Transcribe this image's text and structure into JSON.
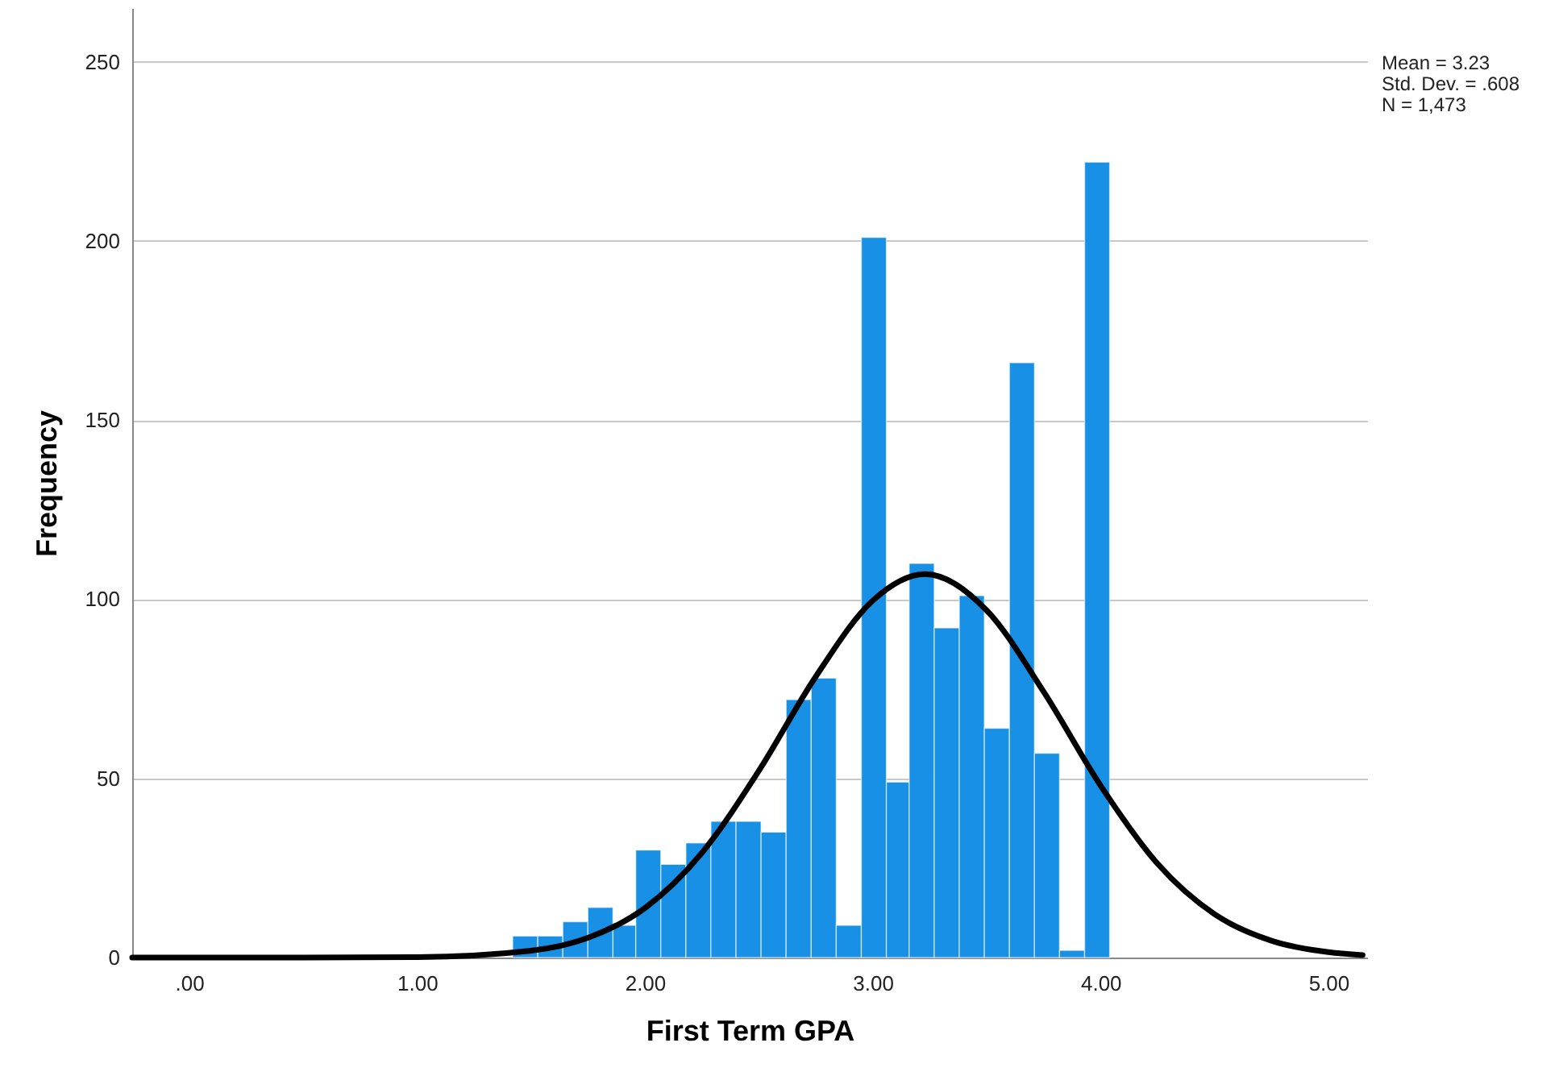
{
  "chart_data": {
    "type": "histogram",
    "xlabel": "First Term GPA",
    "ylabel": "Frequency",
    "annotations": [
      "Mean = 3.23",
      "Std. Dev. = .608",
      "N = 1,473"
    ],
    "xlim": [
      -0.25,
      5.17
    ],
    "ylim": [
      0,
      265
    ],
    "xticks": [
      {
        "value": 0,
        "label": ".00"
      },
      {
        "value": 1,
        "label": "1.00"
      },
      {
        "value": 2,
        "label": "2.00"
      },
      {
        "value": 3,
        "label": "3.00"
      },
      {
        "value": 4,
        "label": "4.00"
      },
      {
        "value": 5,
        "label": "5.00"
      }
    ],
    "yticks": [
      0,
      50,
      100,
      150,
      200,
      250
    ],
    "grid": "y",
    "series": [
      {
        "color": "#1790e6",
        "bins": [
          1.42,
          1.53,
          1.64,
          1.75,
          1.86,
          1.96,
          2.07,
          2.18,
          2.29,
          2.4,
          2.51,
          2.62,
          2.73,
          2.84,
          2.95,
          3.06,
          3.16,
          3.27,
          3.38,
          3.49,
          3.6,
          3.71,
          3.82,
          3.93,
          4.04
        ],
        "values": [
          6,
          6,
          10,
          14,
          9,
          30,
          26,
          32,
          38,
          38,
          35,
          72,
          78,
          9,
          201,
          49,
          110,
          92,
          101,
          64,
          166,
          57,
          2,
          222
        ]
      },
      {
        "type": "line",
        "color": "#000000",
        "line_style": "solid",
        "x": [
          -0.25,
          0,
          0.5,
          1,
          1.5,
          1.75,
          2,
          2.25,
          2.5,
          2.75,
          3,
          3.23,
          3.5,
          3.75,
          4,
          4.25,
          4.5,
          4.75,
          5,
          5.15
        ],
        "values": [
          0,
          0,
          0,
          0.1,
          1.9,
          5.5,
          13.8,
          29.2,
          52.1,
          78.4,
          99.6,
          107,
          96.9,
          74.2,
          48,
          26.2,
          12.1,
          4.7,
          1.5,
          0.7
        ]
      }
    ]
  }
}
